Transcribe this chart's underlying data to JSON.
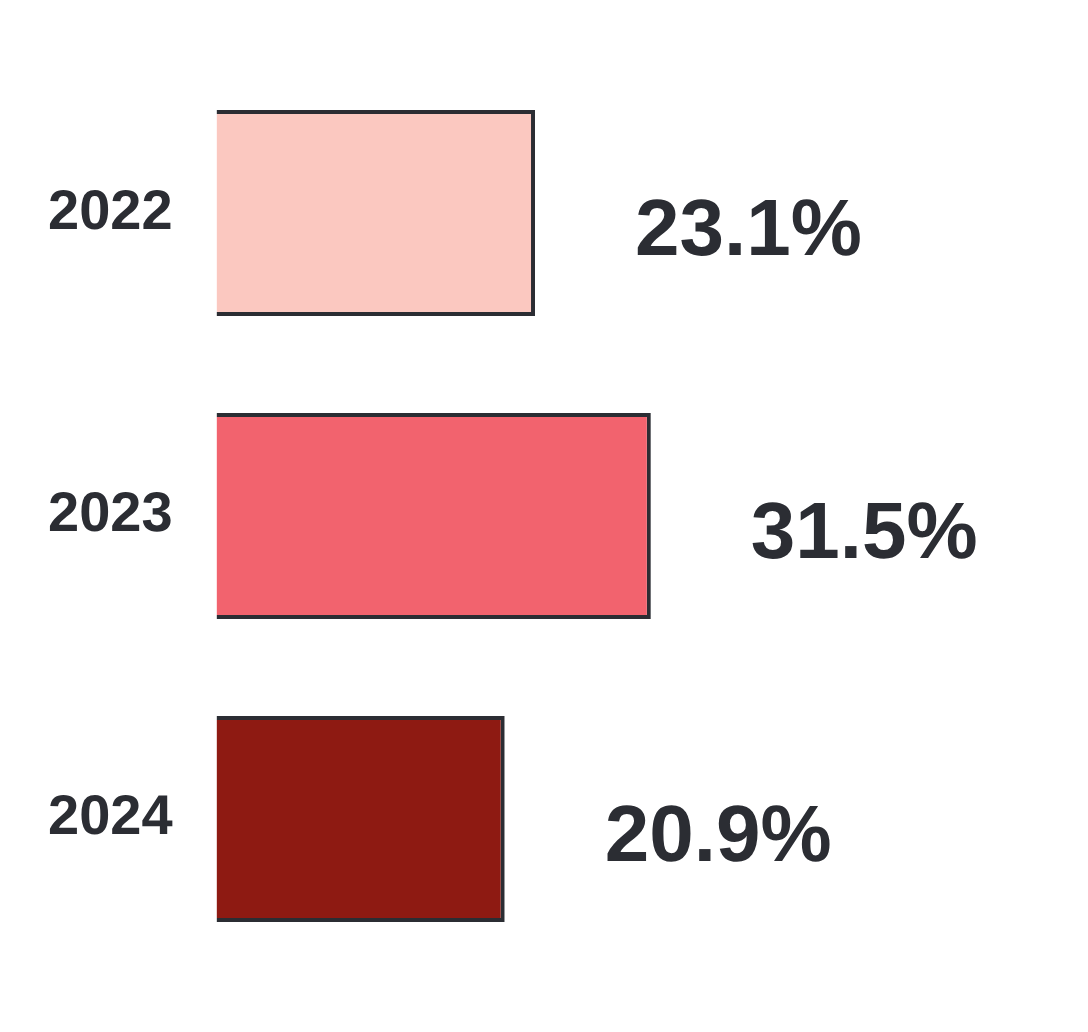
{
  "chart_data": {
    "type": "bar",
    "orientation": "horizontal",
    "categories": [
      "2022",
      "2023",
      "2024"
    ],
    "values": [
      23.1,
      31.5,
      20.9
    ],
    "colors": [
      "#fbc8c0",
      "#f2636e",
      "#8e1a12"
    ],
    "value_labels": [
      "23.1%",
      "31.5%",
      "20.9%"
    ]
  }
}
